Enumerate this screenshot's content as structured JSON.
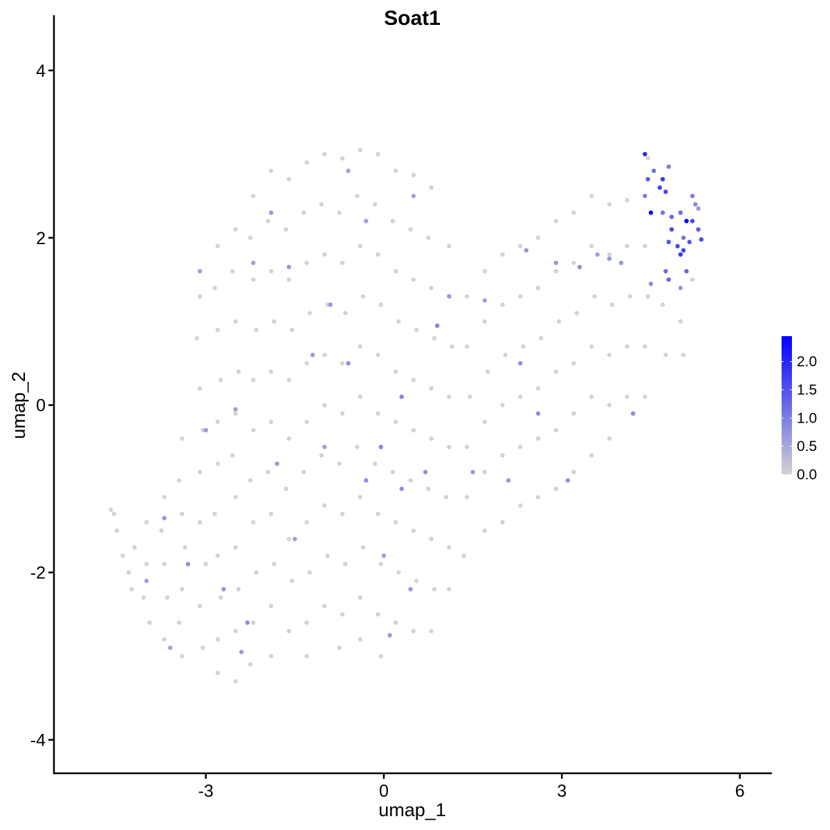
{
  "chart_data": {
    "type": "scatter",
    "title": "Soat1",
    "xlabel": "umap_1",
    "ylabel": "umap_2",
    "xlim": [
      -5.56,
      6.54
    ],
    "ylim": [
      -4.4,
      4.66
    ],
    "xticks": [
      -3,
      0,
      3,
      6
    ],
    "yticks": [
      -4,
      -2,
      0,
      2,
      4
    ],
    "xtick_labels": [
      "-3",
      "0",
      "3",
      "6"
    ],
    "ytick_labels": [
      "-4",
      "-2",
      "0",
      "2",
      "4"
    ],
    "grid": false,
    "legend": {
      "placement": "right",
      "type": "colorbar",
      "range": [
        0,
        2.45
      ],
      "ticks": [
        0.0,
        0.5,
        1.0,
        1.5,
        2.0
      ],
      "tick_labels": [
        "0.0",
        "0.5",
        "1.0",
        "1.5",
        "2.0"
      ],
      "low_color": "#d3d3d3",
      "high_color": "#0000ff"
    },
    "points_note_columns": [
      "umap_1",
      "umap_2",
      "expression"
    ],
    "points": [
      [
        -4.6,
        -1.25,
        0
      ],
      [
        -4.55,
        -1.3,
        0
      ],
      [
        -4.5,
        -1.5,
        0
      ],
      [
        -4.4,
        -1.8,
        0
      ],
      [
        -4.3,
        -2.0,
        0
      ],
      [
        -4.2,
        -1.7,
        0
      ],
      [
        -4.25,
        -2.2,
        0
      ],
      [
        -4.0,
        -1.4,
        0
      ],
      [
        -4.0,
        -1.9,
        0
      ],
      [
        -4.05,
        -2.3,
        0
      ],
      [
        -3.95,
        -2.6,
        0
      ],
      [
        -4.0,
        -2.1,
        0.6
      ],
      [
        -3.7,
        -1.1,
        0
      ],
      [
        -3.75,
        -1.5,
        0
      ],
      [
        -3.7,
        -1.9,
        0
      ],
      [
        -3.65,
        -2.3,
        0
      ],
      [
        -3.7,
        -2.8,
        0
      ],
      [
        -3.6,
        -2.9,
        0.6
      ],
      [
        -3.7,
        -1.35,
        0.7
      ],
      [
        -3.4,
        -0.4,
        0
      ],
      [
        -3.45,
        -0.9,
        0
      ],
      [
        -3.4,
        -1.3,
        0
      ],
      [
        -3.35,
        -1.7,
        0
      ],
      [
        -3.4,
        -2.2,
        0
      ],
      [
        -3.45,
        -2.6,
        0
      ],
      [
        -3.4,
        -3.0,
        0
      ],
      [
        -3.3,
        -1.9,
        0.8
      ],
      [
        -3.1,
        1.3,
        0
      ],
      [
        -3.15,
        0.8,
        0
      ],
      [
        -3.1,
        0.2,
        0
      ],
      [
        -3.05,
        -0.3,
        0
      ],
      [
        -3.1,
        -0.8,
        0
      ],
      [
        -3.1,
        -1.4,
        0
      ],
      [
        -3.0,
        -1.9,
        0
      ],
      [
        -3.1,
        -2.4,
        0
      ],
      [
        -3.05,
        -2.9,
        0
      ],
      [
        -3.1,
        1.6,
        0.6
      ],
      [
        -3.0,
        -0.3,
        0.7
      ],
      [
        -2.8,
        1.9,
        0
      ],
      [
        -2.85,
        1.4,
        0
      ],
      [
        -2.8,
        0.9,
        0
      ],
      [
        -2.75,
        0.3,
        0
      ],
      [
        -2.8,
        -0.2,
        0
      ],
      [
        -2.8,
        -0.7,
        0
      ],
      [
        -2.85,
        -1.3,
        0
      ],
      [
        -2.8,
        -1.8,
        0
      ],
      [
        -2.75,
        -2.3,
        0
      ],
      [
        -2.8,
        -2.8,
        0
      ],
      [
        -2.8,
        -3.2,
        0
      ],
      [
        -2.7,
        -2.2,
        0.7
      ],
      [
        -2.5,
        2.1,
        0
      ],
      [
        -2.55,
        1.6,
        0
      ],
      [
        -2.5,
        1.0,
        0
      ],
      [
        -2.45,
        0.4,
        0
      ],
      [
        -2.5,
        -0.1,
        0
      ],
      [
        -2.55,
        -0.6,
        0
      ],
      [
        -2.5,
        -1.1,
        0
      ],
      [
        -2.5,
        -1.7,
        0
      ],
      [
        -2.45,
        -2.2,
        0
      ],
      [
        -2.5,
        -2.7,
        0
      ],
      [
        -2.5,
        -3.3,
        0
      ],
      [
        -2.4,
        -2.95,
        0.7
      ],
      [
        -2.5,
        -0.05,
        0.6
      ],
      [
        -2.2,
        2.5,
        0
      ],
      [
        -2.25,
        2.0,
        0
      ],
      [
        -2.2,
        1.5,
        0
      ],
      [
        -2.15,
        0.9,
        0
      ],
      [
        -2.2,
        0.3,
        0
      ],
      [
        -2.2,
        -0.3,
        0
      ],
      [
        -2.25,
        -0.9,
        0
      ],
      [
        -2.2,
        -1.4,
        0
      ],
      [
        -2.15,
        -2.0,
        0
      ],
      [
        -2.2,
        -2.6,
        0
      ],
      [
        -2.25,
        -3.1,
        0
      ],
      [
        -2.2,
        1.7,
        0.6
      ],
      [
        -2.3,
        -2.6,
        0.8
      ],
      [
        -1.9,
        2.8,
        0
      ],
      [
        -1.95,
        2.2,
        0
      ],
      [
        -1.9,
        1.6,
        0
      ],
      [
        -1.85,
        1.0,
        0
      ],
      [
        -1.9,
        0.4,
        0
      ],
      [
        -1.9,
        -0.2,
        0
      ],
      [
        -1.95,
        -0.8,
        0
      ],
      [
        -1.9,
        -1.3,
        0
      ],
      [
        -1.85,
        -1.9,
        0
      ],
      [
        -1.9,
        -2.4,
        0
      ],
      [
        -1.9,
        -3.0,
        0
      ],
      [
        -1.9,
        2.3,
        0.7
      ],
      [
        -1.8,
        -0.7,
        0.7
      ],
      [
        -1.6,
        2.7,
        0
      ],
      [
        -1.65,
        2.1,
        0
      ],
      [
        -1.6,
        1.5,
        0
      ],
      [
        -1.55,
        0.9,
        0
      ],
      [
        -1.6,
        0.3,
        0
      ],
      [
        -1.6,
        -0.4,
        0
      ],
      [
        -1.65,
        -1.0,
        0
      ],
      [
        -1.6,
        -1.6,
        0
      ],
      [
        -1.55,
        -2.1,
        0
      ],
      [
        -1.6,
        -2.7,
        0
      ],
      [
        -1.6,
        1.65,
        0.7
      ],
      [
        -1.5,
        -1.6,
        0.6
      ],
      [
        -1.3,
        2.9,
        0
      ],
      [
        -1.35,
        2.3,
        0
      ],
      [
        -1.3,
        1.7,
        0
      ],
      [
        -1.25,
        1.1,
        0
      ],
      [
        -1.3,
        0.5,
        0
      ],
      [
        -1.3,
        -0.2,
        0
      ],
      [
        -1.35,
        -0.8,
        0
      ],
      [
        -1.3,
        -1.4,
        0
      ],
      [
        -1.25,
        -2.0,
        0
      ],
      [
        -1.3,
        -2.6,
        0
      ],
      [
        -1.3,
        -3.0,
        0
      ],
      [
        -1.2,
        0.6,
        0.7
      ],
      [
        -1.0,
        3.0,
        0
      ],
      [
        -1.05,
        2.4,
        0
      ],
      [
        -1.0,
        1.8,
        0
      ],
      [
        -0.95,
        1.2,
        0
      ],
      [
        -1.0,
        0.6,
        0
      ],
      [
        -1.0,
        0.0,
        0
      ],
      [
        -1.05,
        -0.6,
        0
      ],
      [
        -1.0,
        -1.2,
        0
      ],
      [
        -0.95,
        -1.8,
        0
      ],
      [
        -1.0,
        -2.4,
        0
      ],
      [
        -0.9,
        1.2,
        0.7
      ],
      [
        -1.0,
        -0.5,
        0.6
      ],
      [
        -0.7,
        2.95,
        0
      ],
      [
        -0.75,
        2.3,
        0
      ],
      [
        -0.7,
        1.7,
        0
      ],
      [
        -0.65,
        1.1,
        0
      ],
      [
        -0.7,
        0.5,
        0
      ],
      [
        -0.7,
        -0.1,
        0
      ],
      [
        -0.75,
        -0.7,
        0
      ],
      [
        -0.7,
        -1.3,
        0
      ],
      [
        -0.65,
        -1.9,
        0
      ],
      [
        -0.7,
        -2.5,
        0
      ],
      [
        -0.75,
        -2.9,
        0
      ],
      [
        -0.6,
        2.8,
        0.6
      ],
      [
        -0.6,
        0.5,
        0.8
      ],
      [
        -0.4,
        3.05,
        0
      ],
      [
        -0.45,
        2.5,
        0
      ],
      [
        -0.4,
        1.9,
        0
      ],
      [
        -0.35,
        1.3,
        0
      ],
      [
        -0.4,
        0.7,
        0
      ],
      [
        -0.4,
        0.1,
        0
      ],
      [
        -0.45,
        -0.5,
        0
      ],
      [
        -0.4,
        -1.1,
        0
      ],
      [
        -0.35,
        -1.7,
        0
      ],
      [
        -0.4,
        -2.3,
        0
      ],
      [
        -0.4,
        -2.8,
        0
      ],
      [
        -0.3,
        -0.9,
        0.8
      ],
      [
        -0.3,
        2.2,
        0.6
      ],
      [
        -0.1,
        3.0,
        0
      ],
      [
        -0.15,
        2.4,
        0
      ],
      [
        -0.1,
        1.8,
        0
      ],
      [
        -0.05,
        1.2,
        0
      ],
      [
        -0.1,
        0.6,
        0
      ],
      [
        -0.1,
        -0.1,
        0
      ],
      [
        -0.15,
        -0.7,
        0
      ],
      [
        -0.1,
        -1.3,
        0
      ],
      [
        -0.05,
        -1.9,
        0
      ],
      [
        -0.1,
        -2.5,
        0
      ],
      [
        -0.05,
        -3.0,
        0
      ],
      [
        -0.05,
        -0.5,
        0.9
      ],
      [
        0.0,
        -1.8,
        0.6
      ],
      [
        0.2,
        2.8,
        0
      ],
      [
        0.15,
        2.2,
        0
      ],
      [
        0.2,
        1.6,
        0
      ],
      [
        0.25,
        1.0,
        0
      ],
      [
        0.2,
        0.4,
        0
      ],
      [
        0.2,
        -0.2,
        0
      ],
      [
        0.15,
        -0.8,
        0
      ],
      [
        0.2,
        -1.4,
        0
      ],
      [
        0.25,
        -2.0,
        0
      ],
      [
        0.2,
        -2.6,
        0
      ],
      [
        0.3,
        0.1,
        0.9
      ],
      [
        0.3,
        -1.0,
        0.8
      ],
      [
        0.1,
        -2.75,
        0.7
      ],
      [
        0.5,
        2.75,
        0
      ],
      [
        0.45,
        2.1,
        0
      ],
      [
        0.5,
        1.5,
        0
      ],
      [
        0.55,
        0.9,
        0
      ],
      [
        0.5,
        0.3,
        0
      ],
      [
        0.5,
        -0.3,
        0
      ],
      [
        0.45,
        -0.9,
        0
      ],
      [
        0.5,
        -1.5,
        0
      ],
      [
        0.55,
        -2.1,
        0
      ],
      [
        0.5,
        -2.7,
        0
      ],
      [
        0.5,
        2.5,
        0.6
      ],
      [
        0.45,
        -2.2,
        0.7
      ],
      [
        0.8,
        2.6,
        0
      ],
      [
        0.75,
        2.0,
        0
      ],
      [
        0.8,
        1.4,
        0
      ],
      [
        0.85,
        0.8,
        0
      ],
      [
        0.8,
        0.2,
        0
      ],
      [
        0.8,
        -0.4,
        0
      ],
      [
        0.75,
        -1.0,
        0
      ],
      [
        0.8,
        -1.6,
        0
      ],
      [
        0.85,
        -2.2,
        0
      ],
      [
        0.8,
        -2.7,
        0
      ],
      [
        0.9,
        0.95,
        0.9
      ],
      [
        0.7,
        -0.8,
        0.8
      ],
      [
        1.1,
        1.9,
        0
      ],
      [
        1.1,
        1.3,
        0
      ],
      [
        1.15,
        0.7,
        0
      ],
      [
        1.1,
        0.1,
        0
      ],
      [
        1.1,
        -0.5,
        0
      ],
      [
        1.05,
        -1.1,
        0
      ],
      [
        1.1,
        -1.7,
        0
      ],
      [
        1.1,
        -2.2,
        0
      ],
      [
        1.1,
        1.3,
        0.7
      ],
      [
        1.4,
        1.3,
        0
      ],
      [
        1.4,
        0.7,
        0
      ],
      [
        1.45,
        0.1,
        0
      ],
      [
        1.4,
        -0.5,
        0
      ],
      [
        1.4,
        -1.1,
        0
      ],
      [
        1.35,
        -1.8,
        0
      ],
      [
        1.5,
        -0.8,
        0.7
      ],
      [
        1.7,
        1.6,
        0
      ],
      [
        1.7,
        1.0,
        0
      ],
      [
        1.75,
        0.4,
        0
      ],
      [
        1.7,
        -0.2,
        0
      ],
      [
        1.7,
        -0.8,
        0
      ],
      [
        1.7,
        -1.5,
        0
      ],
      [
        1.7,
        1.25,
        0.6
      ],
      [
        2.0,
        1.8,
        0
      ],
      [
        2.0,
        1.2,
        0
      ],
      [
        2.05,
        0.6,
        0
      ],
      [
        2.0,
        0.0,
        0
      ],
      [
        2.0,
        -0.6,
        0
      ],
      [
        2.0,
        -1.4,
        0
      ],
      [
        2.1,
        -0.9,
        0.7
      ],
      [
        2.3,
        1.9,
        0
      ],
      [
        2.3,
        1.3,
        0
      ],
      [
        2.35,
        0.7,
        0
      ],
      [
        2.3,
        0.1,
        0
      ],
      [
        2.3,
        -0.5,
        0
      ],
      [
        2.3,
        -1.2,
        0
      ],
      [
        2.4,
        1.85,
        0.7
      ],
      [
        2.3,
        0.5,
        0.8
      ],
      [
        2.6,
        2.0,
        0
      ],
      [
        2.6,
        1.4,
        0
      ],
      [
        2.65,
        0.8,
        0
      ],
      [
        2.6,
        0.2,
        0
      ],
      [
        2.6,
        -0.4,
        0
      ],
      [
        2.6,
        -1.1,
        0
      ],
      [
        2.6,
        -0.1,
        0.8
      ],
      [
        2.9,
        2.2,
        0
      ],
      [
        2.9,
        1.6,
        0
      ],
      [
        2.95,
        1.0,
        0
      ],
      [
        2.9,
        0.4,
        0
      ],
      [
        2.9,
        -0.3,
        0
      ],
      [
        2.9,
        -1.0,
        0
      ],
      [
        2.9,
        1.7,
        0.7
      ],
      [
        3.1,
        -0.9,
        0.8
      ],
      [
        3.2,
        2.3,
        0
      ],
      [
        3.2,
        1.7,
        0
      ],
      [
        3.25,
        1.1,
        0
      ],
      [
        3.2,
        0.5,
        0
      ],
      [
        3.2,
        -0.1,
        0
      ],
      [
        3.2,
        -0.8,
        0
      ],
      [
        3.3,
        1.65,
        0.8
      ],
      [
        3.5,
        2.5,
        0
      ],
      [
        3.5,
        1.9,
        0
      ],
      [
        3.55,
        1.3,
        0
      ],
      [
        3.5,
        0.7,
        0
      ],
      [
        3.5,
        0.1,
        0
      ],
      [
        3.5,
        -0.6,
        0
      ],
      [
        3.6,
        1.8,
        0.6
      ],
      [
        3.8,
        2.4,
        0
      ],
      [
        3.8,
        1.8,
        0
      ],
      [
        3.85,
        1.2,
        0
      ],
      [
        3.8,
        0.6,
        0
      ],
      [
        3.8,
        0.0,
        0
      ],
      [
        3.8,
        -0.4,
        0
      ],
      [
        3.8,
        1.75,
        0.7
      ],
      [
        4.1,
        2.45,
        0
      ],
      [
        4.1,
        1.9,
        0
      ],
      [
        4.15,
        1.3,
        0
      ],
      [
        4.1,
        0.7,
        0
      ],
      [
        4.1,
        0.1,
        0
      ],
      [
        4.2,
        -0.1,
        0.8
      ],
      [
        4.0,
        1.7,
        0.7
      ],
      [
        4.45,
        2.95,
        0
      ],
      [
        4.4,
        2.5,
        1.0
      ],
      [
        4.4,
        3.0,
        2.0
      ],
      [
        4.5,
        2.3,
        2.3
      ],
      [
        4.45,
        2.7,
        1.4
      ],
      [
        4.55,
        2.8,
        1.2
      ],
      [
        4.4,
        1.9,
        0
      ],
      [
        4.45,
        1.3,
        0
      ],
      [
        4.4,
        0.7,
        0
      ],
      [
        4.4,
        0.1,
        0
      ],
      [
        4.5,
        1.45,
        0.8
      ],
      [
        4.7,
        2.7,
        1.8
      ],
      [
        4.65,
        2.6,
        1.7
      ],
      [
        4.75,
        2.55,
        1.6
      ],
      [
        4.8,
        2.85,
        1.0
      ],
      [
        4.7,
        2.3,
        1.1
      ],
      [
        4.85,
        2.25,
        1.3
      ],
      [
        4.8,
        1.95,
        1.5
      ],
      [
        4.85,
        2.1,
        1.6
      ],
      [
        4.75,
        1.6,
        1.2
      ],
      [
        4.7,
        1.2,
        0
      ],
      [
        4.75,
        0.6,
        0
      ],
      [
        4.8,
        1.5,
        1.3
      ],
      [
        5.0,
        2.3,
        1.2
      ],
      [
        4.95,
        1.9,
        1.6
      ],
      [
        5.0,
        1.8,
        1.8
      ],
      [
        5.05,
        2.0,
        1.1
      ],
      [
        5.1,
        2.2,
        2.45
      ],
      [
        5.15,
        1.95,
        1.5
      ],
      [
        5.05,
        1.85,
        1.7
      ],
      [
        5.1,
        1.6,
        1.3
      ],
      [
        5.0,
        1.0,
        0
      ],
      [
        5.05,
        0.6,
        0
      ],
      [
        5.0,
        1.4,
        0.7
      ],
      [
        5.25,
        2.4,
        0.9
      ],
      [
        5.3,
        2.35,
        0.7
      ],
      [
        5.2,
        2.2,
        1.6
      ],
      [
        5.3,
        2.1,
        1.4
      ],
      [
        5.35,
        1.98,
        1.6
      ],
      [
        5.2,
        2.5,
        1.0
      ],
      [
        5.2,
        1.5,
        0
      ]
    ]
  }
}
